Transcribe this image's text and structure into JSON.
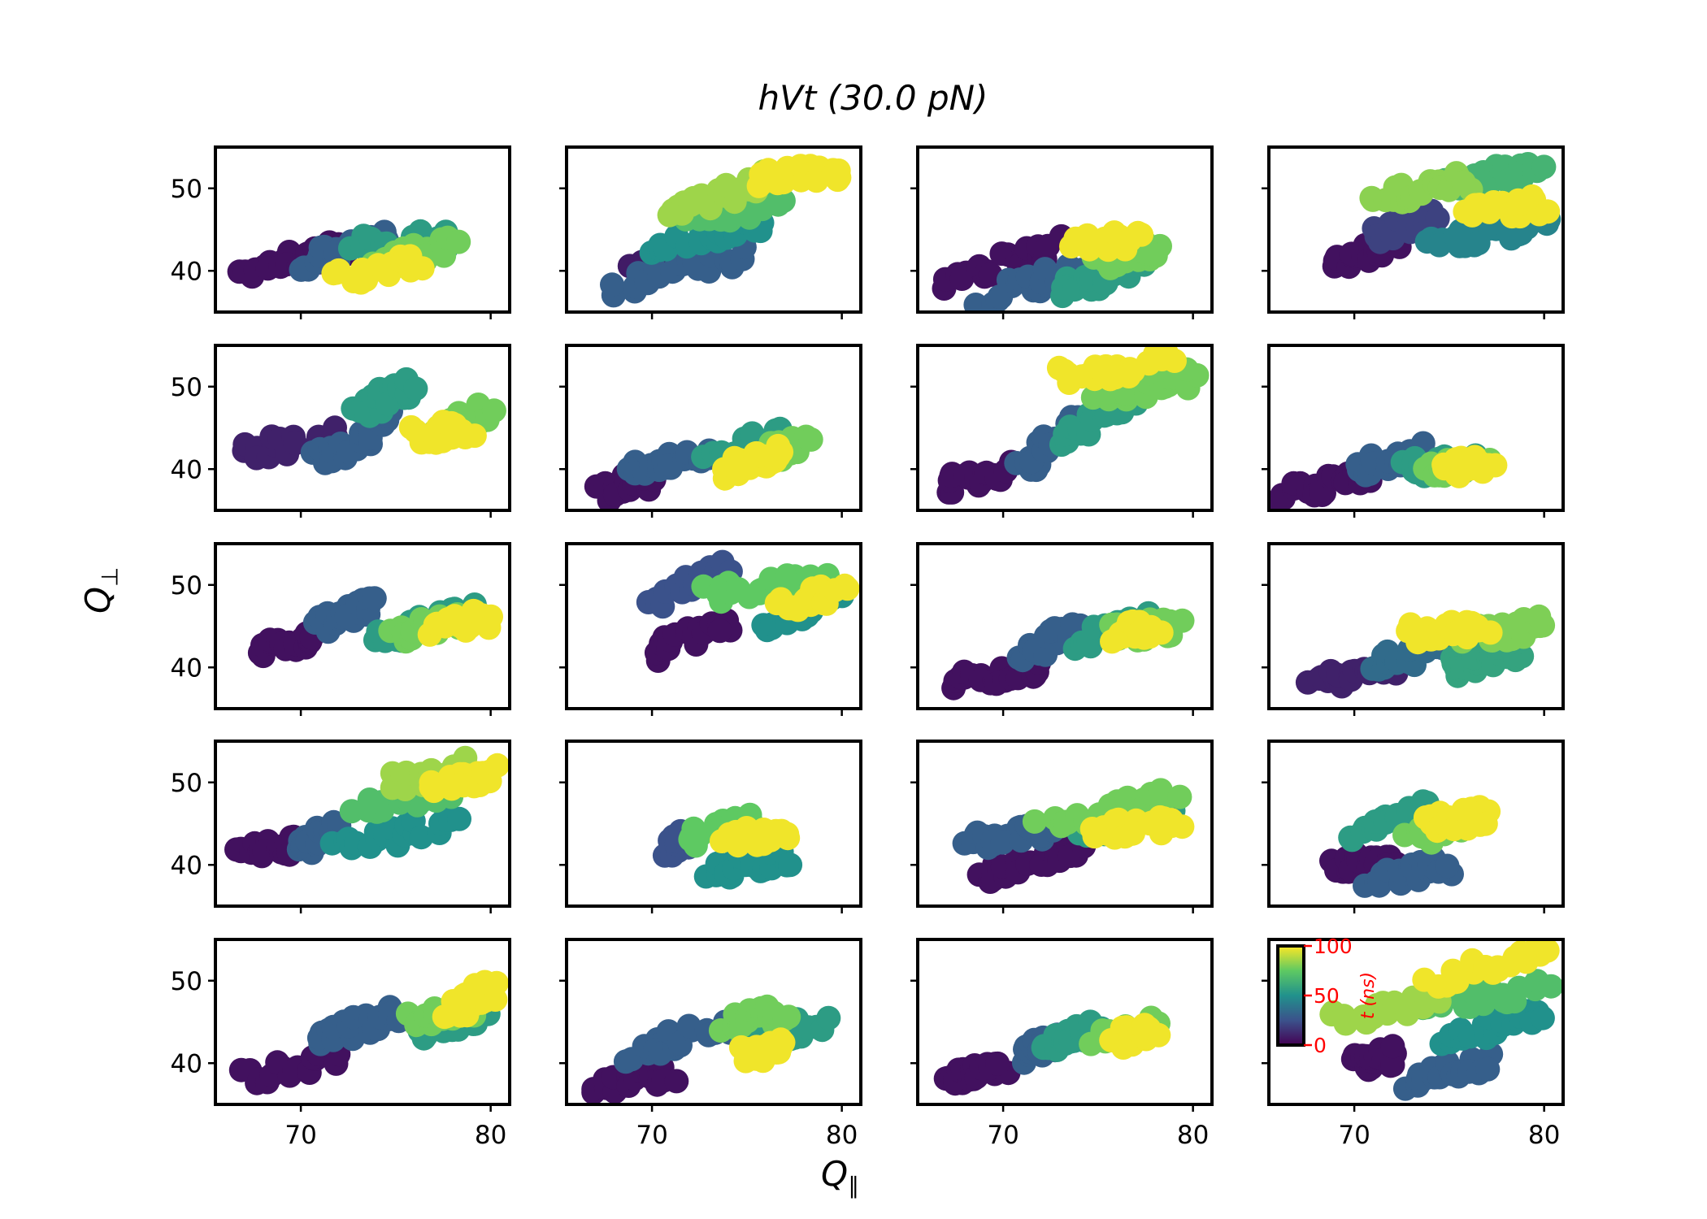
{
  "title": "hVt (30.0 pN)",
  "xlabel": "Q",
  "xlabel_sub": "∥",
  "ylabel": "Q",
  "ylabel_sub": "⊥",
  "colormap": [
    "#440154",
    "#3b528b",
    "#21918c",
    "#5ec962",
    "#fde725"
  ],
  "colorbar": {
    "label": "t (ns)",
    "ticks": [
      "0",
      "50",
      "100"
    ],
    "tick_color": "#ff0000"
  },
  "chart_data": {
    "type": "scatter",
    "layout": {
      "rows": 5,
      "cols": 4,
      "sharex": true,
      "sharey": true
    },
    "xlim": [
      65.5,
      81
    ],
    "ylim": [
      35,
      55
    ],
    "xticks": [
      70,
      80
    ],
    "yticks": [
      40,
      50
    ],
    "color_variable": "t (ns)",
    "color_range": [
      0,
      100
    ],
    "panels": [
      {
        "segments": [
          {
            "t": 5,
            "x0": 67,
            "x1": 72,
            "y0": 40,
            "y1": 43
          },
          {
            "t": 30,
            "x0": 70,
            "x1": 75,
            "y0": 41,
            "y1": 44
          },
          {
            "t": 55,
            "x0": 73,
            "x1": 78,
            "y0": 43,
            "y1": 44
          },
          {
            "t": 78,
            "x0": 74,
            "x1": 78,
            "y0": 41,
            "y1": 43
          },
          {
            "t": 98,
            "x0": 72,
            "x1": 76,
            "y0": 39,
            "y1": 41
          }
        ]
      },
      {
        "segments": [
          {
            "t": 8,
            "x0": 69,
            "x1": 72,
            "y0": 40,
            "y1": 42
          },
          {
            "t": 30,
            "x0": 68,
            "x1": 75,
            "y0": 38,
            "y1": 42
          },
          {
            "t": 50,
            "x0": 70,
            "x1": 76,
            "y0": 43,
            "y1": 46
          },
          {
            "t": 70,
            "x0": 72,
            "x1": 77,
            "y0": 46,
            "y1": 48
          },
          {
            "t": 85,
            "x0": 71,
            "x1": 76,
            "y0": 47,
            "y1": 51
          },
          {
            "t": 98,
            "x0": 76,
            "x1": 80,
            "y0": 51,
            "y1": 52
          }
        ]
      },
      {
        "segments": [
          {
            "t": 5,
            "x0": 67,
            "x1": 73,
            "y0": 39,
            "y1": 43
          },
          {
            "t": 30,
            "x0": 69,
            "x1": 74,
            "y0": 37,
            "y1": 40
          },
          {
            "t": 55,
            "x0": 73,
            "x1": 77,
            "y0": 38,
            "y1": 40
          },
          {
            "t": 78,
            "x0": 75,
            "x1": 78,
            "y0": 41,
            "y1": 43
          },
          {
            "t": 98,
            "x0": 74,
            "x1": 77,
            "y0": 43,
            "y1": 44
          }
        ]
      },
      {
        "segments": [
          {
            "t": 5,
            "x0": 69,
            "x1": 72,
            "y0": 41,
            "y1": 43
          },
          {
            "t": 20,
            "x0": 71,
            "x1": 74,
            "y0": 44,
            "y1": 47
          },
          {
            "t": 45,
            "x0": 74,
            "x1": 80,
            "y0": 43,
            "y1": 46
          },
          {
            "t": 65,
            "x0": 75,
            "x1": 80,
            "y0": 50,
            "y1": 53
          },
          {
            "t": 82,
            "x0": 71,
            "x1": 76,
            "y0": 49,
            "y1": 51
          },
          {
            "t": 98,
            "x0": 76,
            "x1": 80,
            "y0": 47,
            "y1": 48
          }
        ]
      },
      {
        "segments": [
          {
            "t": 10,
            "x0": 67,
            "x1": 72,
            "y0": 42,
            "y1": 44
          },
          {
            "t": 30,
            "x0": 71,
            "x1": 75,
            "y0": 41,
            "y1": 46
          },
          {
            "t": 55,
            "x0": 73,
            "x1": 76,
            "y0": 47,
            "y1": 50
          },
          {
            "t": 78,
            "x0": 77,
            "x1": 80,
            "y0": 45,
            "y1": 47
          },
          {
            "t": 98,
            "x0": 76,
            "x1": 79,
            "y0": 44,
            "y1": 45
          }
        ]
      },
      {
        "segments": [
          {
            "t": 5,
            "x0": 67,
            "x1": 70,
            "y0": 37,
            "y1": 39
          },
          {
            "t": 30,
            "x0": 69,
            "x1": 73,
            "y0": 40,
            "y1": 42
          },
          {
            "t": 55,
            "x0": 73,
            "x1": 77,
            "y0": 42,
            "y1": 44
          },
          {
            "t": 78,
            "x0": 76,
            "x1": 78,
            "y0": 42,
            "y1": 43
          },
          {
            "t": 98,
            "x0": 74,
            "x1": 77,
            "y0": 40,
            "y1": 42
          }
        ]
      },
      {
        "segments": [
          {
            "t": 5,
            "x0": 67,
            "x1": 70,
            "y0": 38,
            "y1": 40
          },
          {
            "t": 30,
            "x0": 71,
            "x1": 74,
            "y0": 40,
            "y1": 46
          },
          {
            "t": 55,
            "x0": 73,
            "x1": 77,
            "y0": 44,
            "y1": 48
          },
          {
            "t": 78,
            "x0": 75,
            "x1": 80,
            "y0": 49,
            "y1": 51
          },
          {
            "t": 98,
            "x0": 73,
            "x1": 79,
            "y0": 51,
            "y1": 53
          }
        ]
      },
      {
        "segments": [
          {
            "t": 5,
            "x0": 66,
            "x1": 71,
            "y0": 37,
            "y1": 39
          },
          {
            "t": 30,
            "x0": 70,
            "x1": 74,
            "y0": 40,
            "y1": 42
          },
          {
            "t": 55,
            "x0": 73,
            "x1": 76,
            "y0": 40,
            "y1": 41
          },
          {
            "t": 78,
            "x0": 74,
            "x1": 77,
            "y0": 40,
            "y1": 41
          },
          {
            "t": 98,
            "x0": 75,
            "x1": 77,
            "y0": 40,
            "y1": 41
          }
        ]
      },
      {
        "segments": [
          {
            "t": 5,
            "x0": 68,
            "x1": 71,
            "y0": 42,
            "y1": 44
          },
          {
            "t": 30,
            "x0": 71,
            "x1": 74,
            "y0": 45,
            "y1": 48
          },
          {
            "t": 55,
            "x0": 74,
            "x1": 79,
            "y0": 43,
            "y1": 47
          },
          {
            "t": 78,
            "x0": 75,
            "x1": 79,
            "y0": 44,
            "y1": 46
          },
          {
            "t": 98,
            "x0": 77,
            "x1": 80,
            "y0": 45,
            "y1": 46
          }
        ]
      },
      {
        "segments": [
          {
            "t": 5,
            "x0": 70,
            "x1": 74,
            "y0": 42,
            "y1": 45
          },
          {
            "t": 25,
            "x0": 70,
            "x1": 74,
            "y0": 48,
            "y1": 52
          },
          {
            "t": 50,
            "x0": 76,
            "x1": 80,
            "y0": 45,
            "y1": 49
          },
          {
            "t": 75,
            "x0": 73,
            "x1": 79,
            "y0": 49,
            "y1": 51
          },
          {
            "t": 98,
            "x0": 77,
            "x1": 80,
            "y0": 48,
            "y1": 49
          }
        ]
      },
      {
        "segments": [
          {
            "t": 5,
            "x0": 67,
            "x1": 72,
            "y0": 38,
            "y1": 40
          },
          {
            "t": 30,
            "x0": 71,
            "x1": 74,
            "y0": 41,
            "y1": 45
          },
          {
            "t": 55,
            "x0": 74,
            "x1": 78,
            "y0": 43,
            "y1": 46
          },
          {
            "t": 78,
            "x0": 76,
            "x1": 79,
            "y0": 44,
            "y1": 45
          },
          {
            "t": 98,
            "x0": 76,
            "x1": 78,
            "y0": 44,
            "y1": 45
          }
        ]
      },
      {
        "segments": [
          {
            "t": 10,
            "x0": 68,
            "x1": 72,
            "y0": 38,
            "y1": 40
          },
          {
            "t": 35,
            "x0": 71,
            "x1": 75,
            "y0": 40,
            "y1": 43
          },
          {
            "t": 58,
            "x0": 75,
            "x1": 79,
            "y0": 40,
            "y1": 42
          },
          {
            "t": 80,
            "x0": 76,
            "x1": 80,
            "y0": 44,
            "y1": 45
          },
          {
            "t": 98,
            "x0": 73,
            "x1": 77,
            "y0": 44,
            "y1": 45
          }
        ]
      },
      {
        "segments": [
          {
            "t": 5,
            "x0": 67,
            "x1": 70,
            "y0": 41,
            "y1": 43
          },
          {
            "t": 30,
            "x0": 70,
            "x1": 72,
            "y0": 42,
            "y1": 45
          },
          {
            "t": 50,
            "x0": 72,
            "x1": 78,
            "y0": 42,
            "y1": 45
          },
          {
            "t": 70,
            "x0": 73,
            "x1": 78,
            "y0": 47,
            "y1": 49
          },
          {
            "t": 85,
            "x0": 75,
            "x1": 79,
            "y0": 50,
            "y1": 52
          },
          {
            "t": 98,
            "x0": 77,
            "x1": 80,
            "y0": 50,
            "y1": 51
          }
        ]
      },
      {
        "segments": [
          {
            "t": 25,
            "x0": 71,
            "x1": 72,
            "y0": 42,
            "y1": 43
          },
          {
            "t": 50,
            "x0": 73,
            "x1": 77,
            "y0": 39,
            "y1": 41
          },
          {
            "t": 75,
            "x0": 72,
            "x1": 75,
            "y0": 43,
            "y1": 46
          },
          {
            "t": 98,
            "x0": 74,
            "x1": 77,
            "y0": 43,
            "y1": 44
          }
        ]
      },
      {
        "segments": [
          {
            "t": 5,
            "x0": 69,
            "x1": 74,
            "y0": 39,
            "y1": 42
          },
          {
            "t": 30,
            "x0": 68,
            "x1": 73,
            "y0": 43,
            "y1": 44
          },
          {
            "t": 55,
            "x0": 74,
            "x1": 79,
            "y0": 44,
            "y1": 47
          },
          {
            "t": 78,
            "x0": 72,
            "x1": 79,
            "y0": 45,
            "y1": 48
          },
          {
            "t": 98,
            "x0": 75,
            "x1": 79,
            "y0": 44,
            "y1": 45
          }
        ]
      },
      {
        "segments": [
          {
            "t": 5,
            "x0": 69,
            "x1": 72,
            "y0": 40,
            "y1": 41
          },
          {
            "t": 30,
            "x0": 71,
            "x1": 75,
            "y0": 38,
            "y1": 40
          },
          {
            "t": 55,
            "x0": 70,
            "x1": 74,
            "y0": 44,
            "y1": 47
          },
          {
            "t": 78,
            "x0": 73,
            "x1": 76,
            "y0": 43,
            "y1": 45
          },
          {
            "t": 98,
            "x0": 74,
            "x1": 77,
            "y0": 45,
            "y1": 46
          }
        ]
      },
      {
        "segments": [
          {
            "t": 5,
            "x0": 67,
            "x1": 72,
            "y0": 38,
            "y1": 41
          },
          {
            "t": 30,
            "x0": 71,
            "x1": 75,
            "y0": 43,
            "y1": 46
          },
          {
            "t": 55,
            "x0": 76,
            "x1": 80,
            "y0": 43,
            "y1": 46
          },
          {
            "t": 78,
            "x0": 76,
            "x1": 79,
            "y0": 45,
            "y1": 47
          },
          {
            "t": 98,
            "x0": 78,
            "x1": 80,
            "y0": 46,
            "y1": 49
          }
        ]
      },
      {
        "segments": [
          {
            "t": 5,
            "x0": 67,
            "x1": 71,
            "y0": 37,
            "y1": 39
          },
          {
            "t": 30,
            "x0": 69,
            "x1": 74,
            "y0": 41,
            "y1": 45
          },
          {
            "t": 55,
            "x0": 75,
            "x1": 79,
            "y0": 43,
            "y1": 45
          },
          {
            "t": 78,
            "x0": 74,
            "x1": 77,
            "y0": 45,
            "y1": 46
          },
          {
            "t": 98,
            "x0": 75,
            "x1": 77,
            "y0": 41,
            "y1": 42
          }
        ]
      },
      {
        "segments": [
          {
            "t": 5,
            "x0": 67,
            "x1": 70,
            "y0": 38,
            "y1": 40
          },
          {
            "t": 30,
            "x0": 71,
            "x1": 73,
            "y0": 41,
            "y1": 43
          },
          {
            "t": 55,
            "x0": 72,
            "x1": 75,
            "y0": 42,
            "y1": 44
          },
          {
            "t": 78,
            "x0": 75,
            "x1": 78,
            "y0": 43,
            "y1": 45
          },
          {
            "t": 98,
            "x0": 76,
            "x1": 78,
            "y0": 43,
            "y1": 44
          }
        ]
      },
      {
        "segments": [
          {
            "t": 5,
            "x0": 70,
            "x1": 72,
            "y0": 40,
            "y1": 41
          },
          {
            "t": 30,
            "x0": 73,
            "x1": 77,
            "y0": 38,
            "y1": 40
          },
          {
            "t": 50,
            "x0": 75,
            "x1": 80,
            "y0": 43,
            "y1": 46
          },
          {
            "t": 70,
            "x0": 74,
            "x1": 80,
            "y0": 47,
            "y1": 49
          },
          {
            "t": 85,
            "x0": 69,
            "x1": 75,
            "y0": 45,
            "y1": 48
          },
          {
            "t": 98,
            "x0": 74,
            "x1": 80,
            "y0": 50,
            "y1": 53
          }
        ]
      }
    ]
  }
}
